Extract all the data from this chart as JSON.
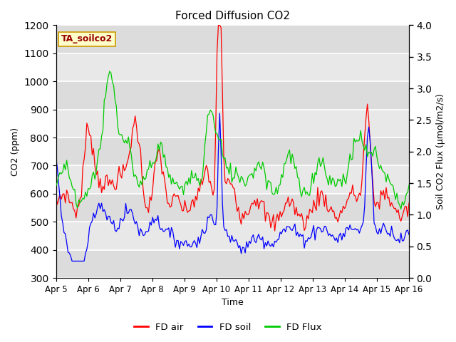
{
  "title": "Forced Diffusion CO2",
  "xlabel": "Time",
  "ylabel_left": "CO2 (ppm)",
  "ylabel_right": "Soil CO2 Flux (μmol/m2/s)",
  "annotation": "TA_soilco2",
  "ylim_left": [
    300,
    1200
  ],
  "ylim_right": [
    0.0,
    4.0
  ],
  "yticks_left": [
    300,
    400,
    500,
    600,
    700,
    800,
    900,
    1000,
    1100,
    1200
  ],
  "yticks_right": [
    0.0,
    0.5,
    1.0,
    1.5,
    2.0,
    2.5,
    3.0,
    3.5,
    4.0
  ],
  "xtick_labels": [
    "Apr 5",
    "Apr 6",
    "Apr 7",
    "Apr 8",
    "Apr 9",
    "Apr 10",
    "Apr 11",
    "Apr 12",
    "Apr 13",
    "Apr 14",
    "Apr 15",
    "Apr 16"
  ],
  "colors": {
    "fd_air": "#FF0000",
    "fd_soil": "#0000FF",
    "fd_flux": "#00CC00"
  },
  "legend_labels": [
    "FD air",
    "FD soil",
    "FD Flux"
  ],
  "bg_light": "#EBEBEB",
  "bg_dark": "#D8D8D8",
  "grid_color": "#FFFFFF",
  "annotation_bg": "#FFFFCC",
  "annotation_border": "#CC9900",
  "annotation_text_color": "#990000",
  "band_colors": [
    "#DCDCDC",
    "#E8E8E8"
  ]
}
